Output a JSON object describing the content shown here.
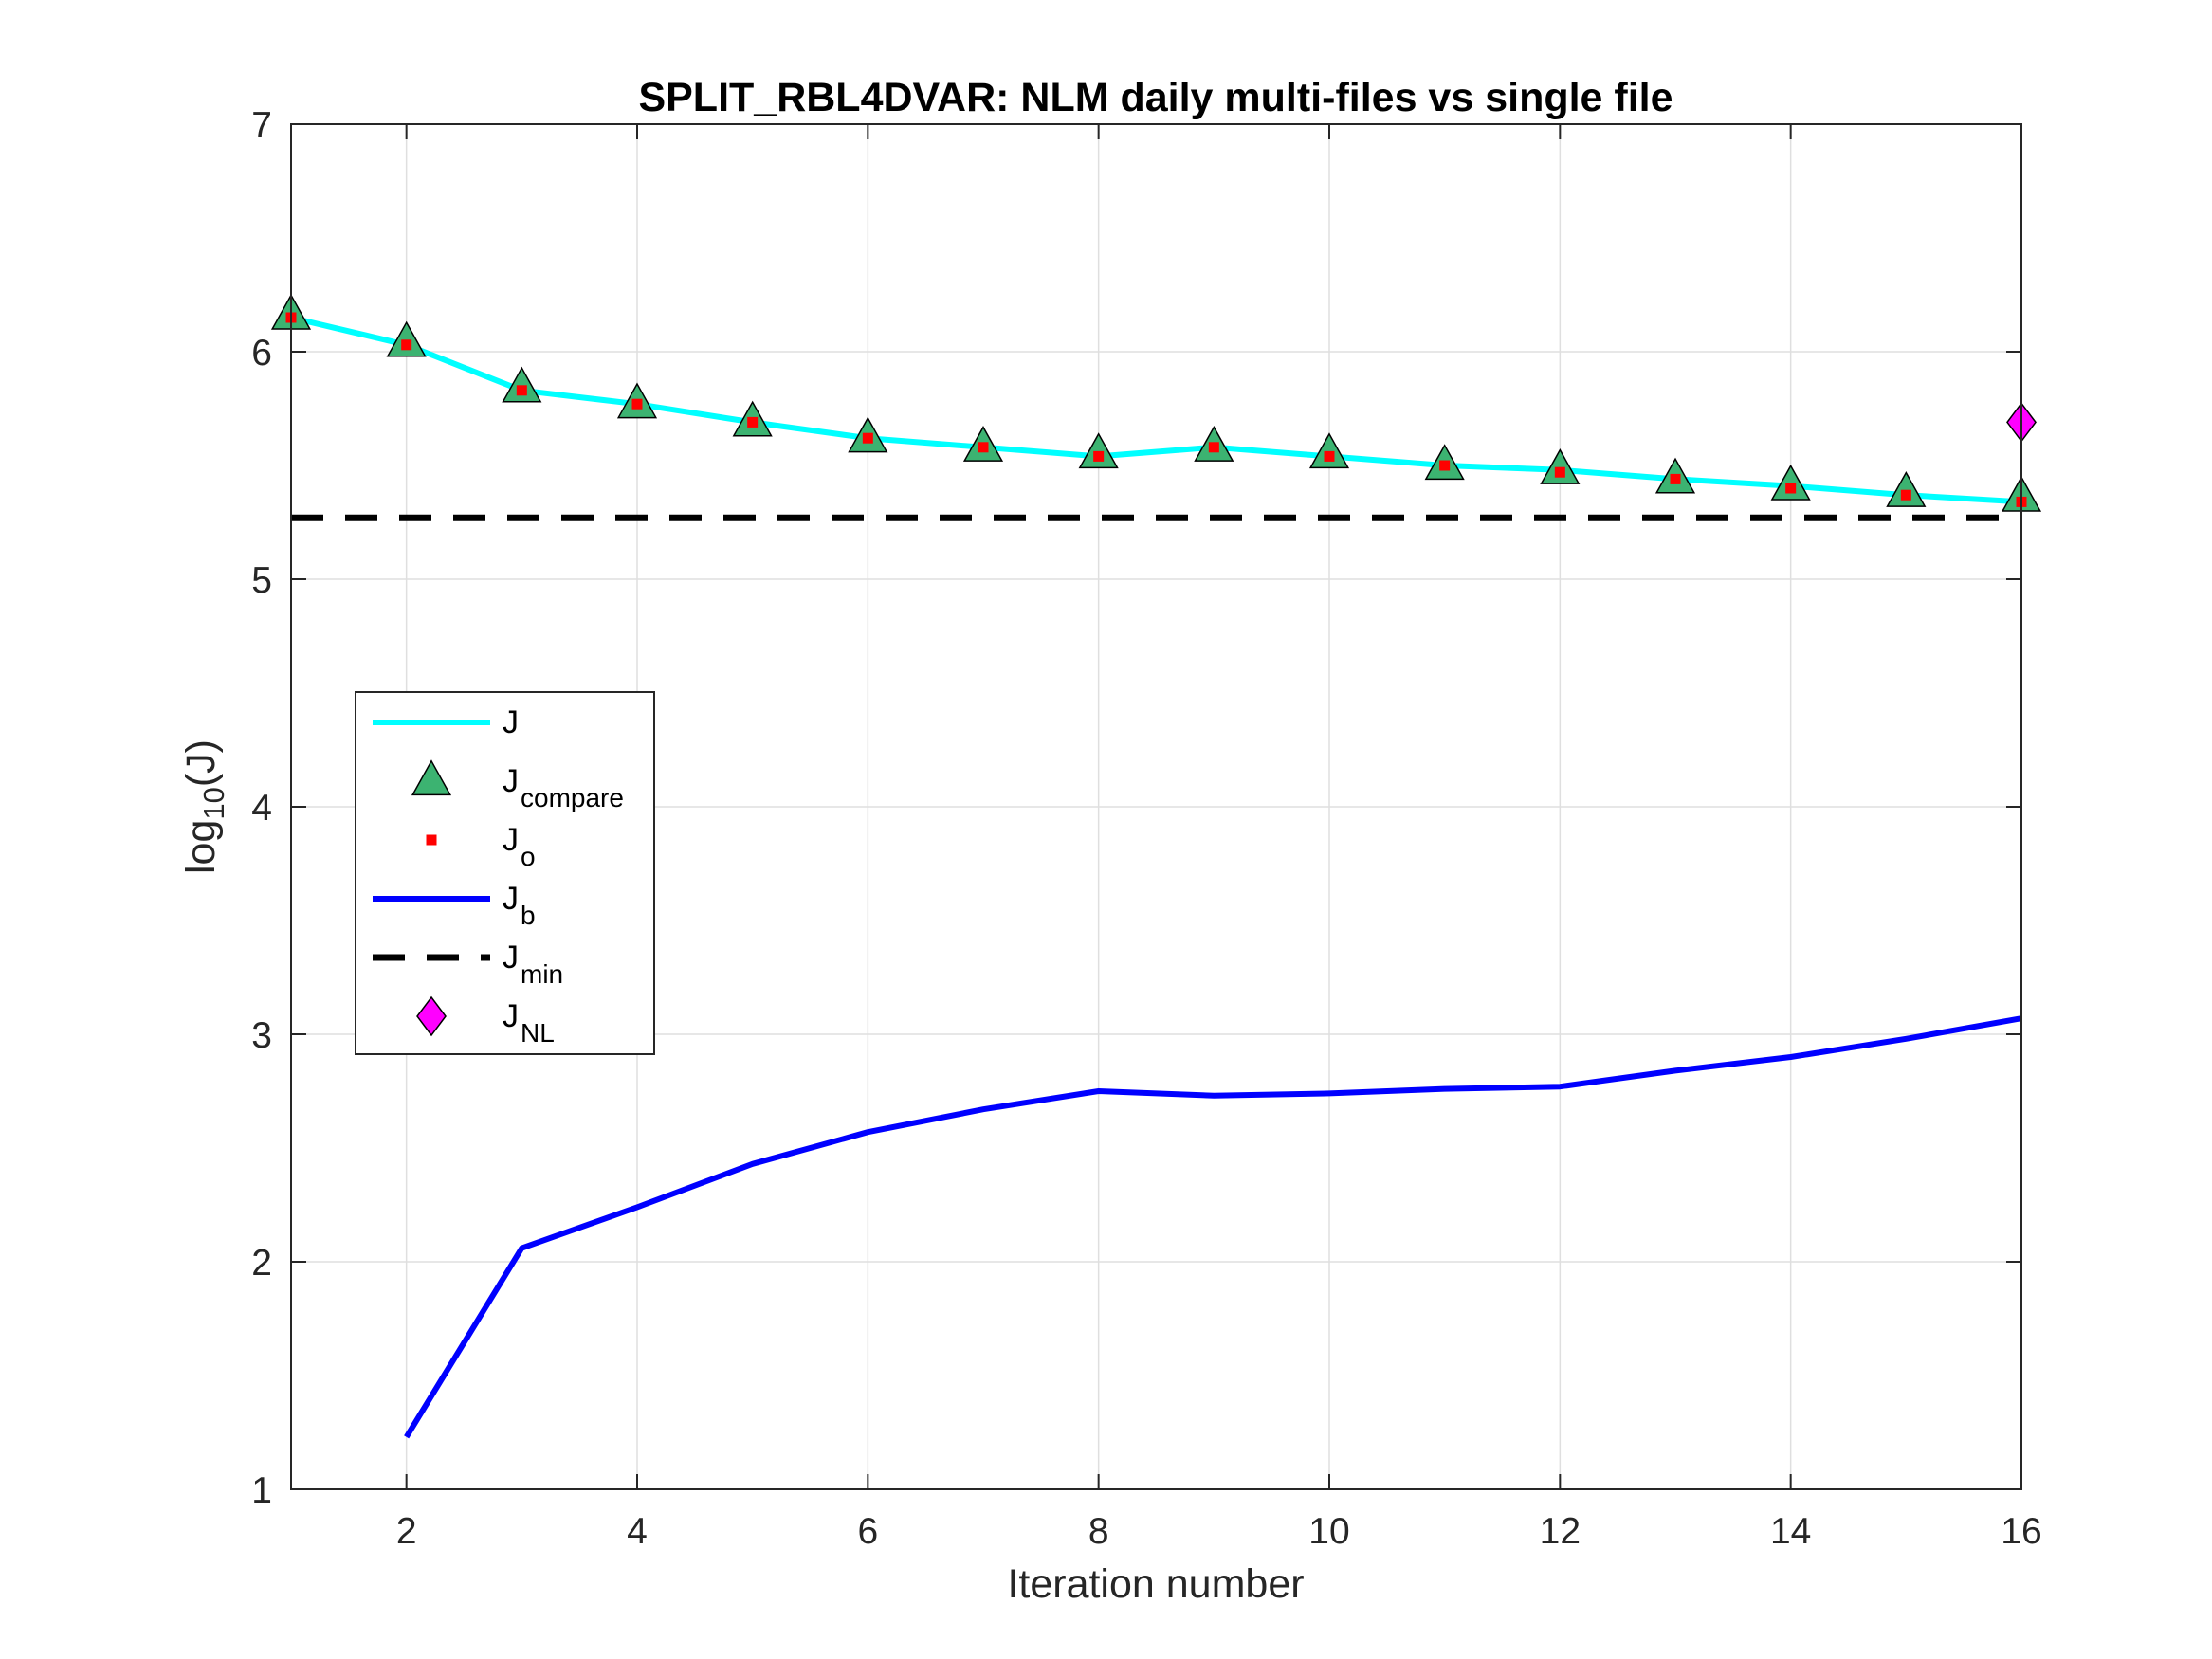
{
  "chart_data": {
    "type": "line",
    "title": "SPLIT_RBL4DVAR:  NLM daily multi-files vs single file",
    "xlabel": "Iteration number",
    "ylabel": {
      "prefix": "log",
      "sub": "10",
      "suffix": "(J)"
    },
    "xlim": [
      1,
      16
    ],
    "ylim": [
      1,
      7
    ],
    "xticks": [
      2,
      4,
      6,
      8,
      10,
      12,
      14,
      16
    ],
    "yticks": [
      1,
      2,
      3,
      4,
      5,
      6,
      7
    ],
    "grid": true,
    "legend_position": "left-center",
    "series": [
      {
        "key": "J",
        "name": "J",
        "sub": "",
        "style": "line",
        "color": "#00FFFF",
        "x": [
          1,
          2,
          3,
          4,
          5,
          6,
          7,
          8,
          9,
          10,
          11,
          12,
          13,
          14,
          15,
          16
        ],
        "y": [
          6.15,
          6.03,
          5.83,
          5.77,
          5.69,
          5.62,
          5.58,
          5.54,
          5.58,
          5.54,
          5.5,
          5.48,
          5.44,
          5.41,
          5.37,
          5.34
        ]
      },
      {
        "key": "Jcompare",
        "name": "J",
        "sub": "compare",
        "style": "triangle",
        "color": "#3CB371",
        "x": [
          1,
          2,
          3,
          4,
          5,
          6,
          7,
          8,
          9,
          10,
          11,
          12,
          13,
          14,
          15,
          16
        ],
        "y": [
          6.16,
          6.04,
          5.84,
          5.77,
          5.69,
          5.62,
          5.58,
          5.55,
          5.58,
          5.55,
          5.5,
          5.48,
          5.44,
          5.41,
          5.38,
          5.36
        ]
      },
      {
        "key": "Jo",
        "name": "J",
        "sub": "o",
        "style": "square",
        "color": "#FF0000",
        "x": [
          1,
          2,
          3,
          4,
          5,
          6,
          7,
          8,
          9,
          10,
          11,
          12,
          13,
          14,
          15,
          16
        ],
        "y": [
          6.15,
          6.03,
          5.83,
          5.77,
          5.69,
          5.62,
          5.58,
          5.54,
          5.58,
          5.54,
          5.5,
          5.47,
          5.44,
          5.4,
          5.37,
          5.34
        ]
      },
      {
        "key": "Jb",
        "name": "J",
        "sub": "b",
        "style": "line",
        "color": "#0000FF",
        "x": [
          2,
          3,
          4,
          5,
          6,
          7,
          8,
          9,
          10,
          11,
          12,
          13,
          14,
          15,
          16
        ],
        "y": [
          1.23,
          2.06,
          2.24,
          2.43,
          2.57,
          2.67,
          2.75,
          2.73,
          2.74,
          2.76,
          2.77,
          2.84,
          2.9,
          2.98,
          3.07
        ]
      },
      {
        "key": "Jmin",
        "name": "J",
        "sub": "min",
        "style": "dashed",
        "color": "#000000",
        "x": [
          1,
          16
        ],
        "y": [
          5.27,
          5.27
        ]
      },
      {
        "key": "JNL",
        "name": "J",
        "sub": "NL",
        "style": "diamond",
        "color": "#FF00FF",
        "x": [
          16
        ],
        "y": [
          5.69
        ]
      }
    ]
  }
}
